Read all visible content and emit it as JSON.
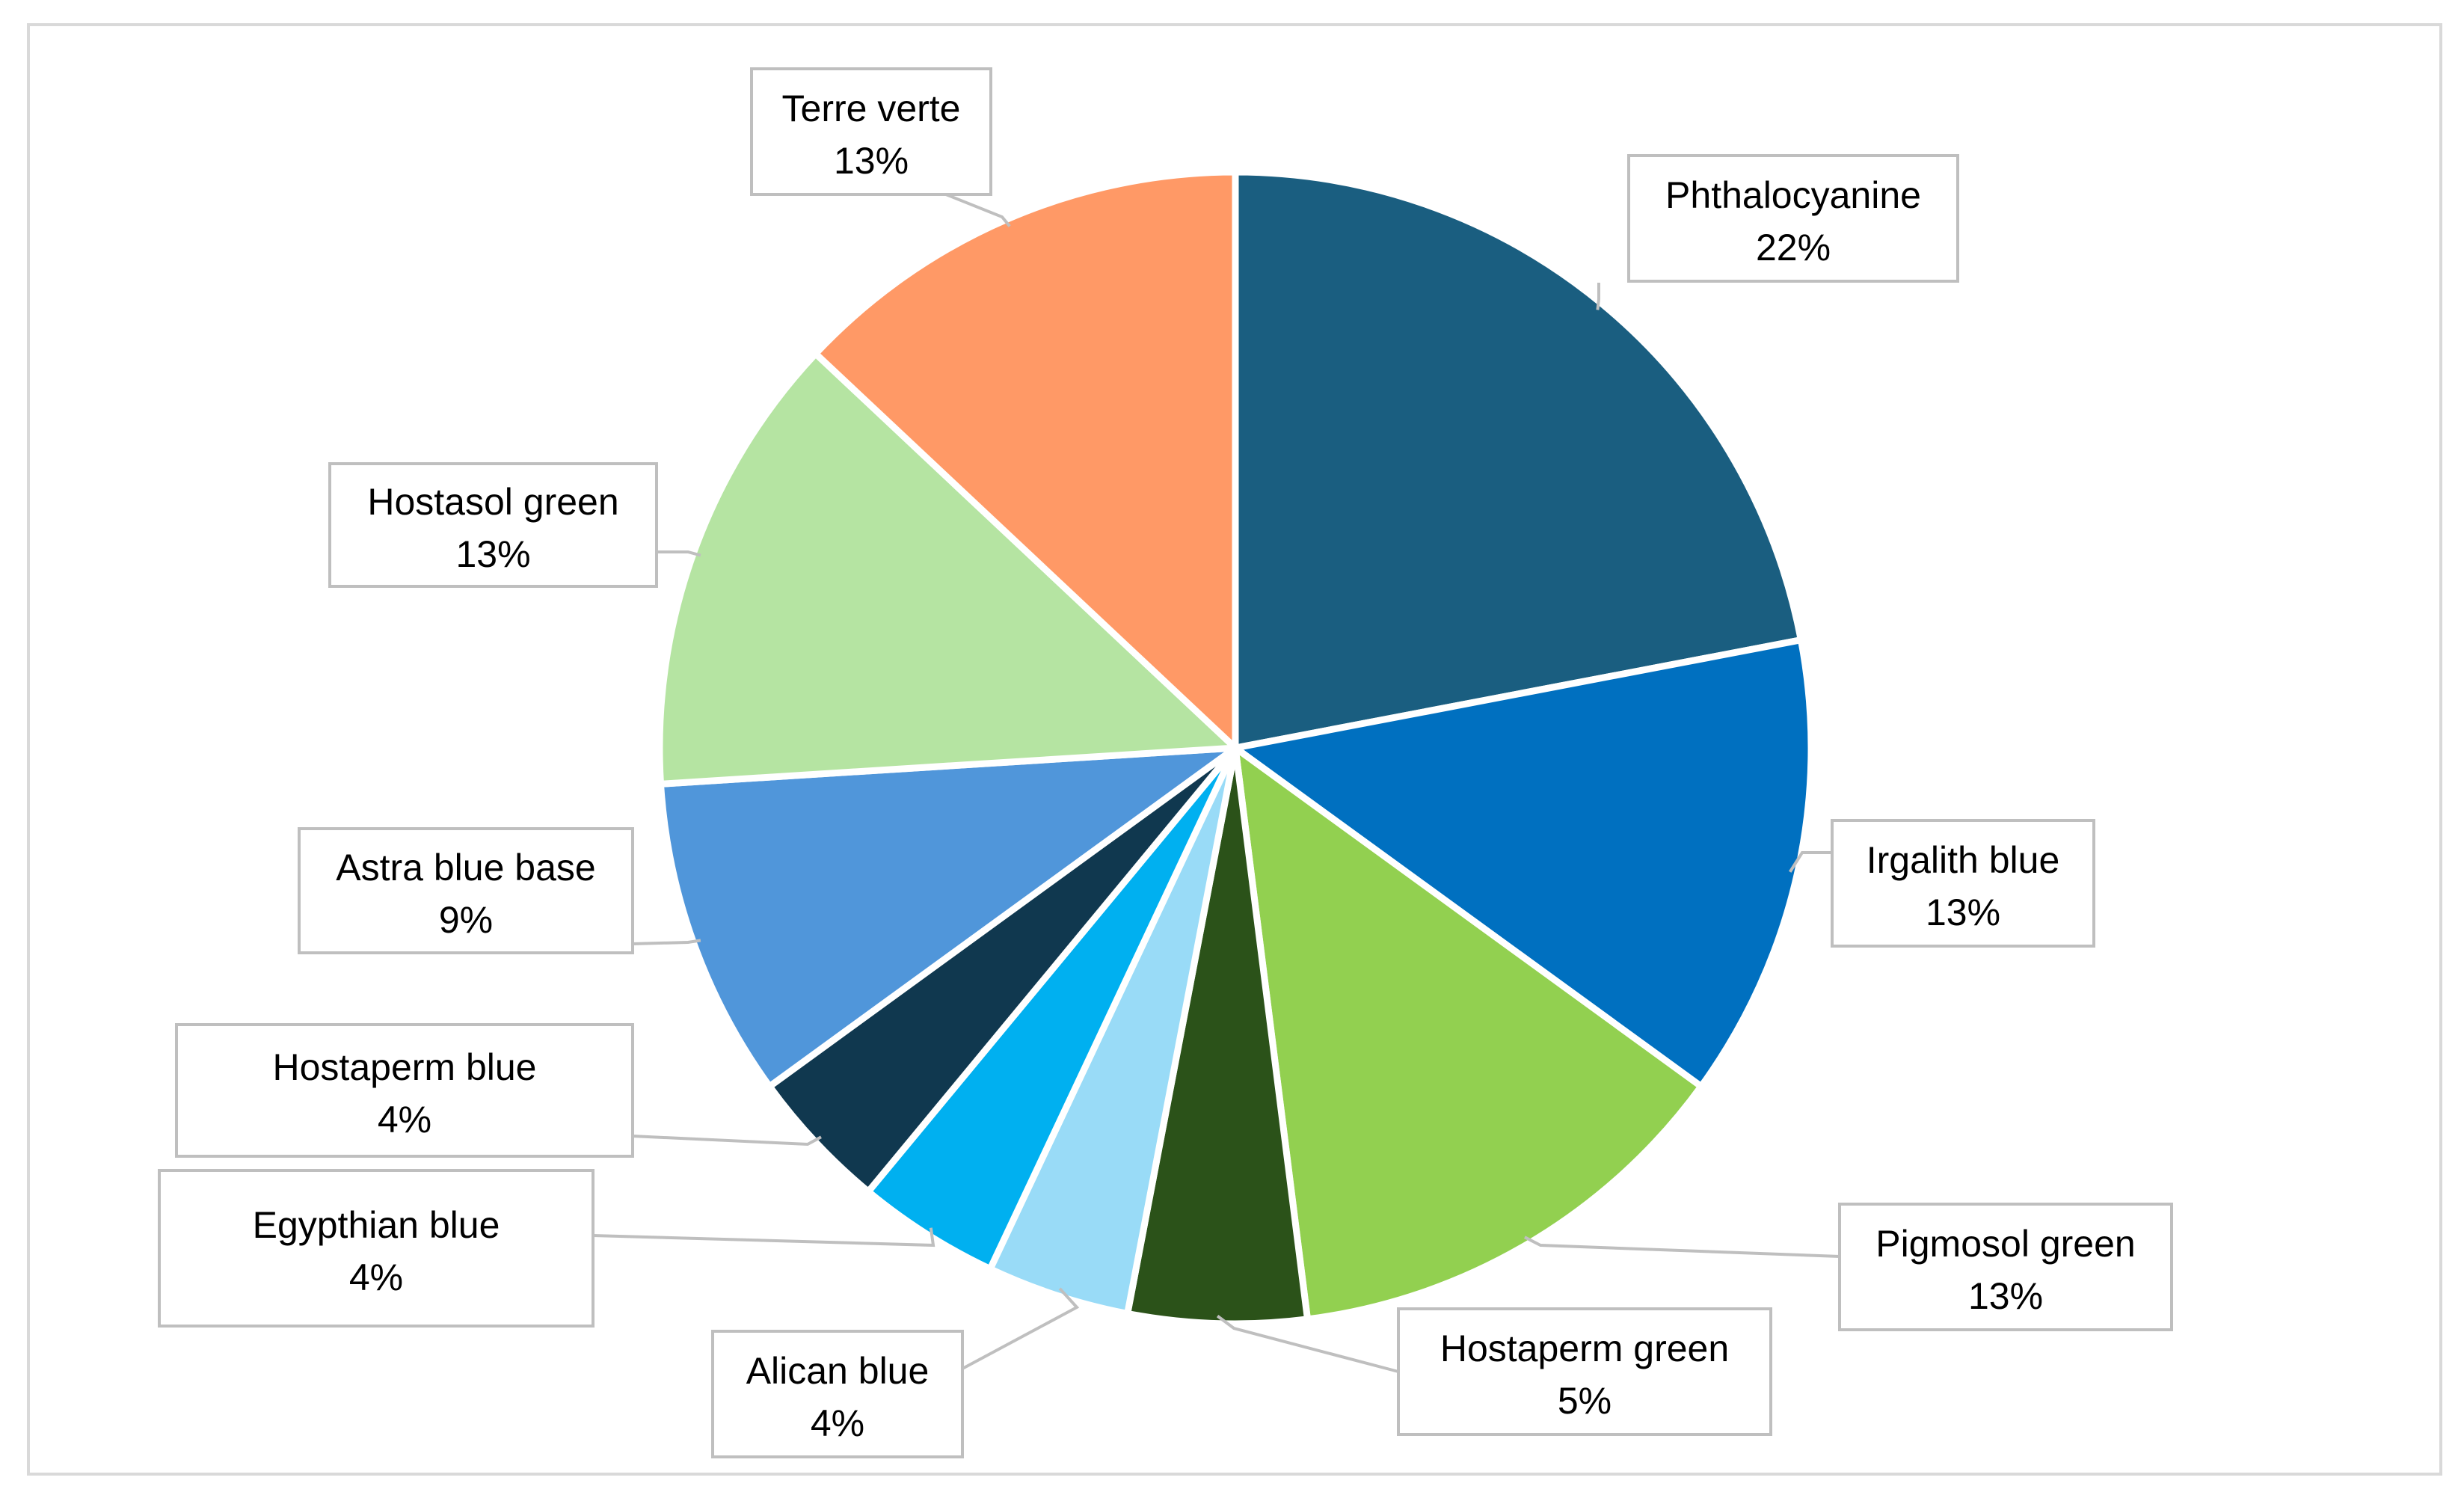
{
  "chart_data": {
    "type": "pie",
    "title": "",
    "slices": [
      {
        "label": "Phthalocyanine",
        "value": 22,
        "value_label": "22%",
        "color": "#1a5e80"
      },
      {
        "label": "Irgalith blue",
        "value": 13,
        "value_label": "13%",
        "color": "#0070c0"
      },
      {
        "label": "Pigmosol green",
        "value": 13,
        "value_label": "13%",
        "color": "#92d050"
      },
      {
        "label": "Hostaperm green",
        "value": 5,
        "value_label": "5%",
        "color": "#2b5219"
      },
      {
        "label": "Alican blue",
        "value": 4,
        "value_label": "4%",
        "color": "#99dbf7"
      },
      {
        "label": "Egypthian blue",
        "value": 4,
        "value_label": "4%",
        "color": "#00b0f0"
      },
      {
        "label": "Hostaperm blue",
        "value": 4,
        "value_label": "4%",
        "color": "#10384f"
      },
      {
        "label": "Astra blue base",
        "value": 9,
        "value_label": "9%",
        "color": "#5096da"
      },
      {
        "label": "Hostasol green",
        "value": 13,
        "value_label": "13%",
        "color": "#b5e4a2"
      },
      {
        "label": "Terre verte",
        "value": 13,
        "value_label": "13%",
        "color": "#ff9966"
      }
    ],
    "start_angle": "12 o'clock",
    "direction": "clockwise",
    "legend": "none",
    "data_labels": "callout boxes with category name and percentage"
  }
}
